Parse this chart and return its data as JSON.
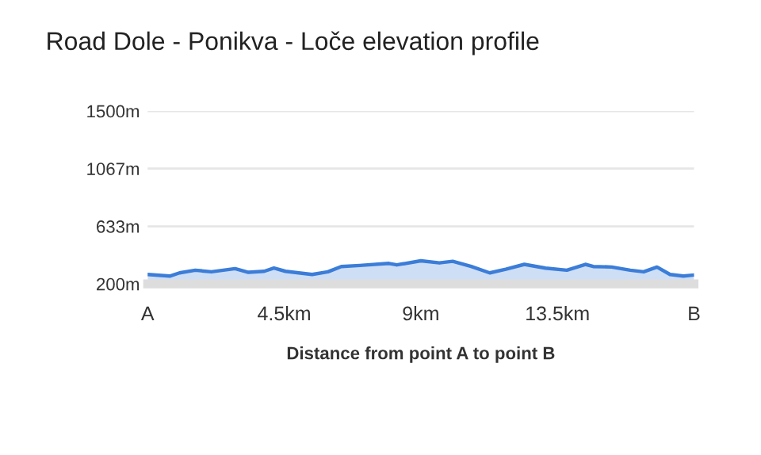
{
  "chart_data": {
    "type": "area",
    "title": "Road Dole - Ponikva - Loče elevation profile",
    "xlabel": "Distance from point A to point B",
    "x": [
      0,
      0.73,
      1.05,
      1.57,
      2.1,
      2.88,
      3.32,
      3.84,
      4.16,
      4.54,
      5.42,
      5.94,
      6.38,
      6.99,
      7.95,
      8.21,
      9.0,
      9.61,
      10.05,
      10.66,
      11.27,
      11.8,
      12.41,
      13.11,
      13.81,
      14.42,
      14.68,
      15.29,
      15.9,
      16.34,
      16.78,
      17.21,
      17.65,
      18
    ],
    "series": [
      {
        "color": "#3b7dd8",
        "values": [
          271,
          259,
          283,
          303,
          291,
          315,
          287,
          295,
          319,
          295,
          271,
          291,
          331,
          339,
          354,
          343,
          374,
          358,
          370,
          331,
          283,
          311,
          347,
          319,
          303,
          347,
          331,
          327,
          303,
          291,
          327,
          271,
          259,
          267
        ]
      }
    ],
    "xlim": [
      0,
      18
    ],
    "xticks": [
      {
        "value": 0,
        "label": "A"
      },
      {
        "value": 4.5,
        "label": "4.5km"
      },
      {
        "value": 9,
        "label": "9km"
      },
      {
        "value": 13.5,
        "label": "13.5km"
      },
      {
        "value": 18,
        "label": "B"
      }
    ],
    "ylim": [
      200,
      1500
    ],
    "yticks": [
      {
        "value": 200,
        "label": "200m"
      },
      {
        "value": 633,
        "label": "633m"
      },
      {
        "value": 1067,
        "label": "1067m"
      },
      {
        "value": 1500,
        "label": "1500m"
      }
    ],
    "grid": "y",
    "legend": false
  }
}
